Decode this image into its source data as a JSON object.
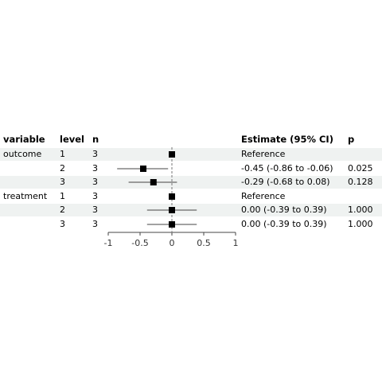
{
  "headers": {
    "variable": "variable",
    "level": "level",
    "n": "n",
    "estimate": "Estimate (95% CI)",
    "p": "p"
  },
  "rows": [
    {
      "variable": "outcome",
      "level": "1",
      "n": "3",
      "estimate_text": "Reference",
      "p": ""
    },
    {
      "variable": "",
      "level": "2",
      "n": "3",
      "estimate_text": "-0.45 (-0.86 to -0.06)",
      "p": "0.025"
    },
    {
      "variable": "",
      "level": "3",
      "n": "3",
      "estimate_text": "-0.29 (-0.68 to 0.08)",
      "p": "0.128"
    },
    {
      "variable": "treatment",
      "level": "1",
      "n": "3",
      "estimate_text": "Reference",
      "p": ""
    },
    {
      "variable": "",
      "level": "2",
      "n": "3",
      "estimate_text": "0.00 (-0.39 to 0.39)",
      "p": "1.000"
    },
    {
      "variable": "",
      "level": "3",
      "n": "3",
      "estimate_text": "0.00 (-0.39 to 0.39)",
      "p": "1.000"
    }
  ],
  "chart_data": {
    "type": "forest",
    "xlim": [
      -1,
      1
    ],
    "reference_line": 0,
    "x_ticks": [
      -1,
      -0.5,
      0,
      0.5,
      1
    ],
    "x_tick_labels": [
      "-1",
      "-0.5",
      "0",
      "0.5",
      "1"
    ],
    "points": [
      {
        "estimate": 0,
        "lower": null,
        "upper": null
      },
      {
        "estimate": -0.45,
        "lower": -0.86,
        "upper": -0.06
      },
      {
        "estimate": -0.29,
        "lower": -0.68,
        "upper": 0.08
      },
      {
        "estimate": 0,
        "lower": null,
        "upper": null
      },
      {
        "estimate": 0.0,
        "lower": -0.39,
        "upper": 0.39
      },
      {
        "estimate": 0.0,
        "lower": -0.39,
        "upper": 0.39
      }
    ]
  }
}
